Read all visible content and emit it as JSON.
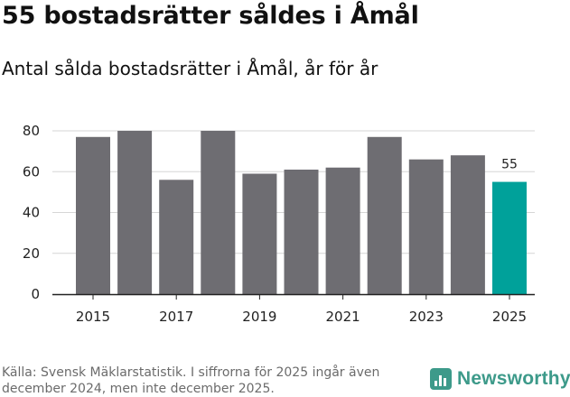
{
  "header": {
    "title": "55 bostadsrätter såldes i Åmål",
    "subtitle": "Antal sålda bostadsrätter i Åmål, år för år"
  },
  "footer": {
    "source": "Källa: Svensk Mäklarstatistik. I siffrorna för 2025 ingår även december 2024, men inte december 2025.",
    "brand": "Newsworthy"
  },
  "colors": {
    "bar": "#6e6d72",
    "highlight": "#00a19a",
    "brand": "#3d9a8a"
  },
  "chart_data": {
    "type": "bar",
    "title": "55 bostadsrätter såldes i Åmål",
    "subtitle": "Antal sålda bostadsrätter i Åmål, år för år",
    "xlabel": "",
    "ylabel": "",
    "categories": [
      "2015",
      "2016",
      "2017",
      "2018",
      "2019",
      "2020",
      "2021",
      "2022",
      "2023",
      "2024",
      "2025"
    ],
    "values": [
      77,
      80,
      56,
      80,
      59,
      61,
      62,
      77,
      66,
      68,
      55
    ],
    "x_tick_labels": [
      "2015",
      "2017",
      "2019",
      "2021",
      "2023",
      "2025"
    ],
    "y_ticks": [
      0,
      20,
      40,
      60,
      80
    ],
    "ylim": [
      0,
      80
    ],
    "grid": true,
    "highlight_index": 10,
    "data_labels": [
      {
        "index": 10,
        "text": "55"
      }
    ]
  }
}
